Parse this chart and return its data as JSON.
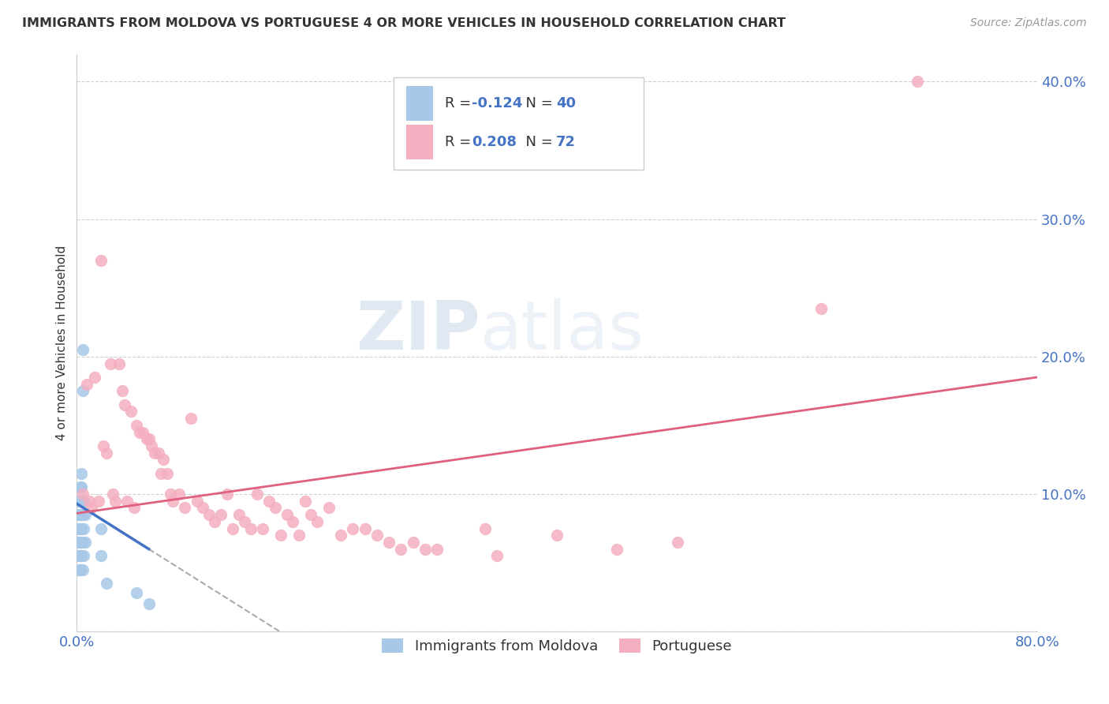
{
  "title": "IMMIGRANTS FROM MOLDOVA VS PORTUGUESE 4 OR MORE VEHICLES IN HOUSEHOLD CORRELATION CHART",
  "source": "Source: ZipAtlas.com",
  "ylabel": "4 or more Vehicles in Household",
  "xlim": [
    0.0,
    0.8
  ],
  "ylim": [
    0.0,
    0.42
  ],
  "xticks": [
    0.0,
    0.1,
    0.2,
    0.3,
    0.4,
    0.5,
    0.6,
    0.7,
    0.8
  ],
  "yticks": [
    0.0,
    0.1,
    0.2,
    0.3,
    0.4
  ],
  "legend1_r": "-0.124",
  "legend1_n": "40",
  "legend2_r": "0.208",
  "legend2_n": "72",
  "color_moldova": "#a8c8e8",
  "color_portuguese": "#f4afc0",
  "color_moldova_line": "#4472c4",
  "color_portuguese_line": "#e06080",
  "moldova_points": [
    [
      0.001,
      0.085
    ],
    [
      0.001,
      0.075
    ],
    [
      0.001,
      0.065
    ],
    [
      0.001,
      0.055
    ],
    [
      0.002,
      0.095
    ],
    [
      0.002,
      0.085
    ],
    [
      0.002,
      0.075
    ],
    [
      0.002,
      0.065
    ],
    [
      0.002,
      0.055
    ],
    [
      0.002,
      0.045
    ],
    [
      0.003,
      0.105
    ],
    [
      0.003,
      0.095
    ],
    [
      0.003,
      0.085
    ],
    [
      0.003,
      0.075
    ],
    [
      0.003,
      0.065
    ],
    [
      0.003,
      0.055
    ],
    [
      0.003,
      0.045
    ],
    [
      0.004,
      0.115
    ],
    [
      0.004,
      0.105
    ],
    [
      0.004,
      0.095
    ],
    [
      0.004,
      0.085
    ],
    [
      0.004,
      0.075
    ],
    [
      0.004,
      0.065
    ],
    [
      0.004,
      0.055
    ],
    [
      0.005,
      0.205
    ],
    [
      0.005,
      0.175
    ],
    [
      0.005,
      0.095
    ],
    [
      0.005,
      0.085
    ],
    [
      0.005,
      0.065
    ],
    [
      0.005,
      0.045
    ],
    [
      0.006,
      0.095
    ],
    [
      0.006,
      0.075
    ],
    [
      0.006,
      0.055
    ],
    [
      0.007,
      0.085
    ],
    [
      0.007,
      0.065
    ],
    [
      0.02,
      0.075
    ],
    [
      0.02,
      0.055
    ],
    [
      0.025,
      0.035
    ],
    [
      0.05,
      0.028
    ],
    [
      0.06,
      0.02
    ]
  ],
  "portuguese_points": [
    [
      0.005,
      0.1
    ],
    [
      0.008,
      0.18
    ],
    [
      0.01,
      0.095
    ],
    [
      0.012,
      0.09
    ],
    [
      0.015,
      0.185
    ],
    [
      0.018,
      0.095
    ],
    [
      0.02,
      0.27
    ],
    [
      0.022,
      0.135
    ],
    [
      0.025,
      0.13
    ],
    [
      0.028,
      0.195
    ],
    [
      0.03,
      0.1
    ],
    [
      0.032,
      0.095
    ],
    [
      0.035,
      0.195
    ],
    [
      0.038,
      0.175
    ],
    [
      0.04,
      0.165
    ],
    [
      0.042,
      0.095
    ],
    [
      0.045,
      0.16
    ],
    [
      0.048,
      0.09
    ],
    [
      0.05,
      0.15
    ],
    [
      0.052,
      0.145
    ],
    [
      0.055,
      0.145
    ],
    [
      0.058,
      0.14
    ],
    [
      0.06,
      0.14
    ],
    [
      0.062,
      0.135
    ],
    [
      0.065,
      0.13
    ],
    [
      0.068,
      0.13
    ],
    [
      0.07,
      0.115
    ],
    [
      0.072,
      0.125
    ],
    [
      0.075,
      0.115
    ],
    [
      0.078,
      0.1
    ],
    [
      0.08,
      0.095
    ],
    [
      0.085,
      0.1
    ],
    [
      0.09,
      0.09
    ],
    [
      0.095,
      0.155
    ],
    [
      0.1,
      0.095
    ],
    [
      0.105,
      0.09
    ],
    [
      0.11,
      0.085
    ],
    [
      0.115,
      0.08
    ],
    [
      0.12,
      0.085
    ],
    [
      0.125,
      0.1
    ],
    [
      0.13,
      0.075
    ],
    [
      0.135,
      0.085
    ],
    [
      0.14,
      0.08
    ],
    [
      0.145,
      0.075
    ],
    [
      0.15,
      0.1
    ],
    [
      0.155,
      0.075
    ],
    [
      0.16,
      0.095
    ],
    [
      0.165,
      0.09
    ],
    [
      0.17,
      0.07
    ],
    [
      0.175,
      0.085
    ],
    [
      0.18,
      0.08
    ],
    [
      0.185,
      0.07
    ],
    [
      0.19,
      0.095
    ],
    [
      0.195,
      0.085
    ],
    [
      0.2,
      0.08
    ],
    [
      0.21,
      0.09
    ],
    [
      0.22,
      0.07
    ],
    [
      0.23,
      0.075
    ],
    [
      0.24,
      0.075
    ],
    [
      0.25,
      0.07
    ],
    [
      0.26,
      0.065
    ],
    [
      0.27,
      0.06
    ],
    [
      0.28,
      0.065
    ],
    [
      0.29,
      0.06
    ],
    [
      0.3,
      0.06
    ],
    [
      0.34,
      0.075
    ],
    [
      0.35,
      0.055
    ],
    [
      0.4,
      0.07
    ],
    [
      0.45,
      0.06
    ],
    [
      0.5,
      0.065
    ],
    [
      0.7,
      0.4
    ],
    [
      0.62,
      0.235
    ]
  ]
}
